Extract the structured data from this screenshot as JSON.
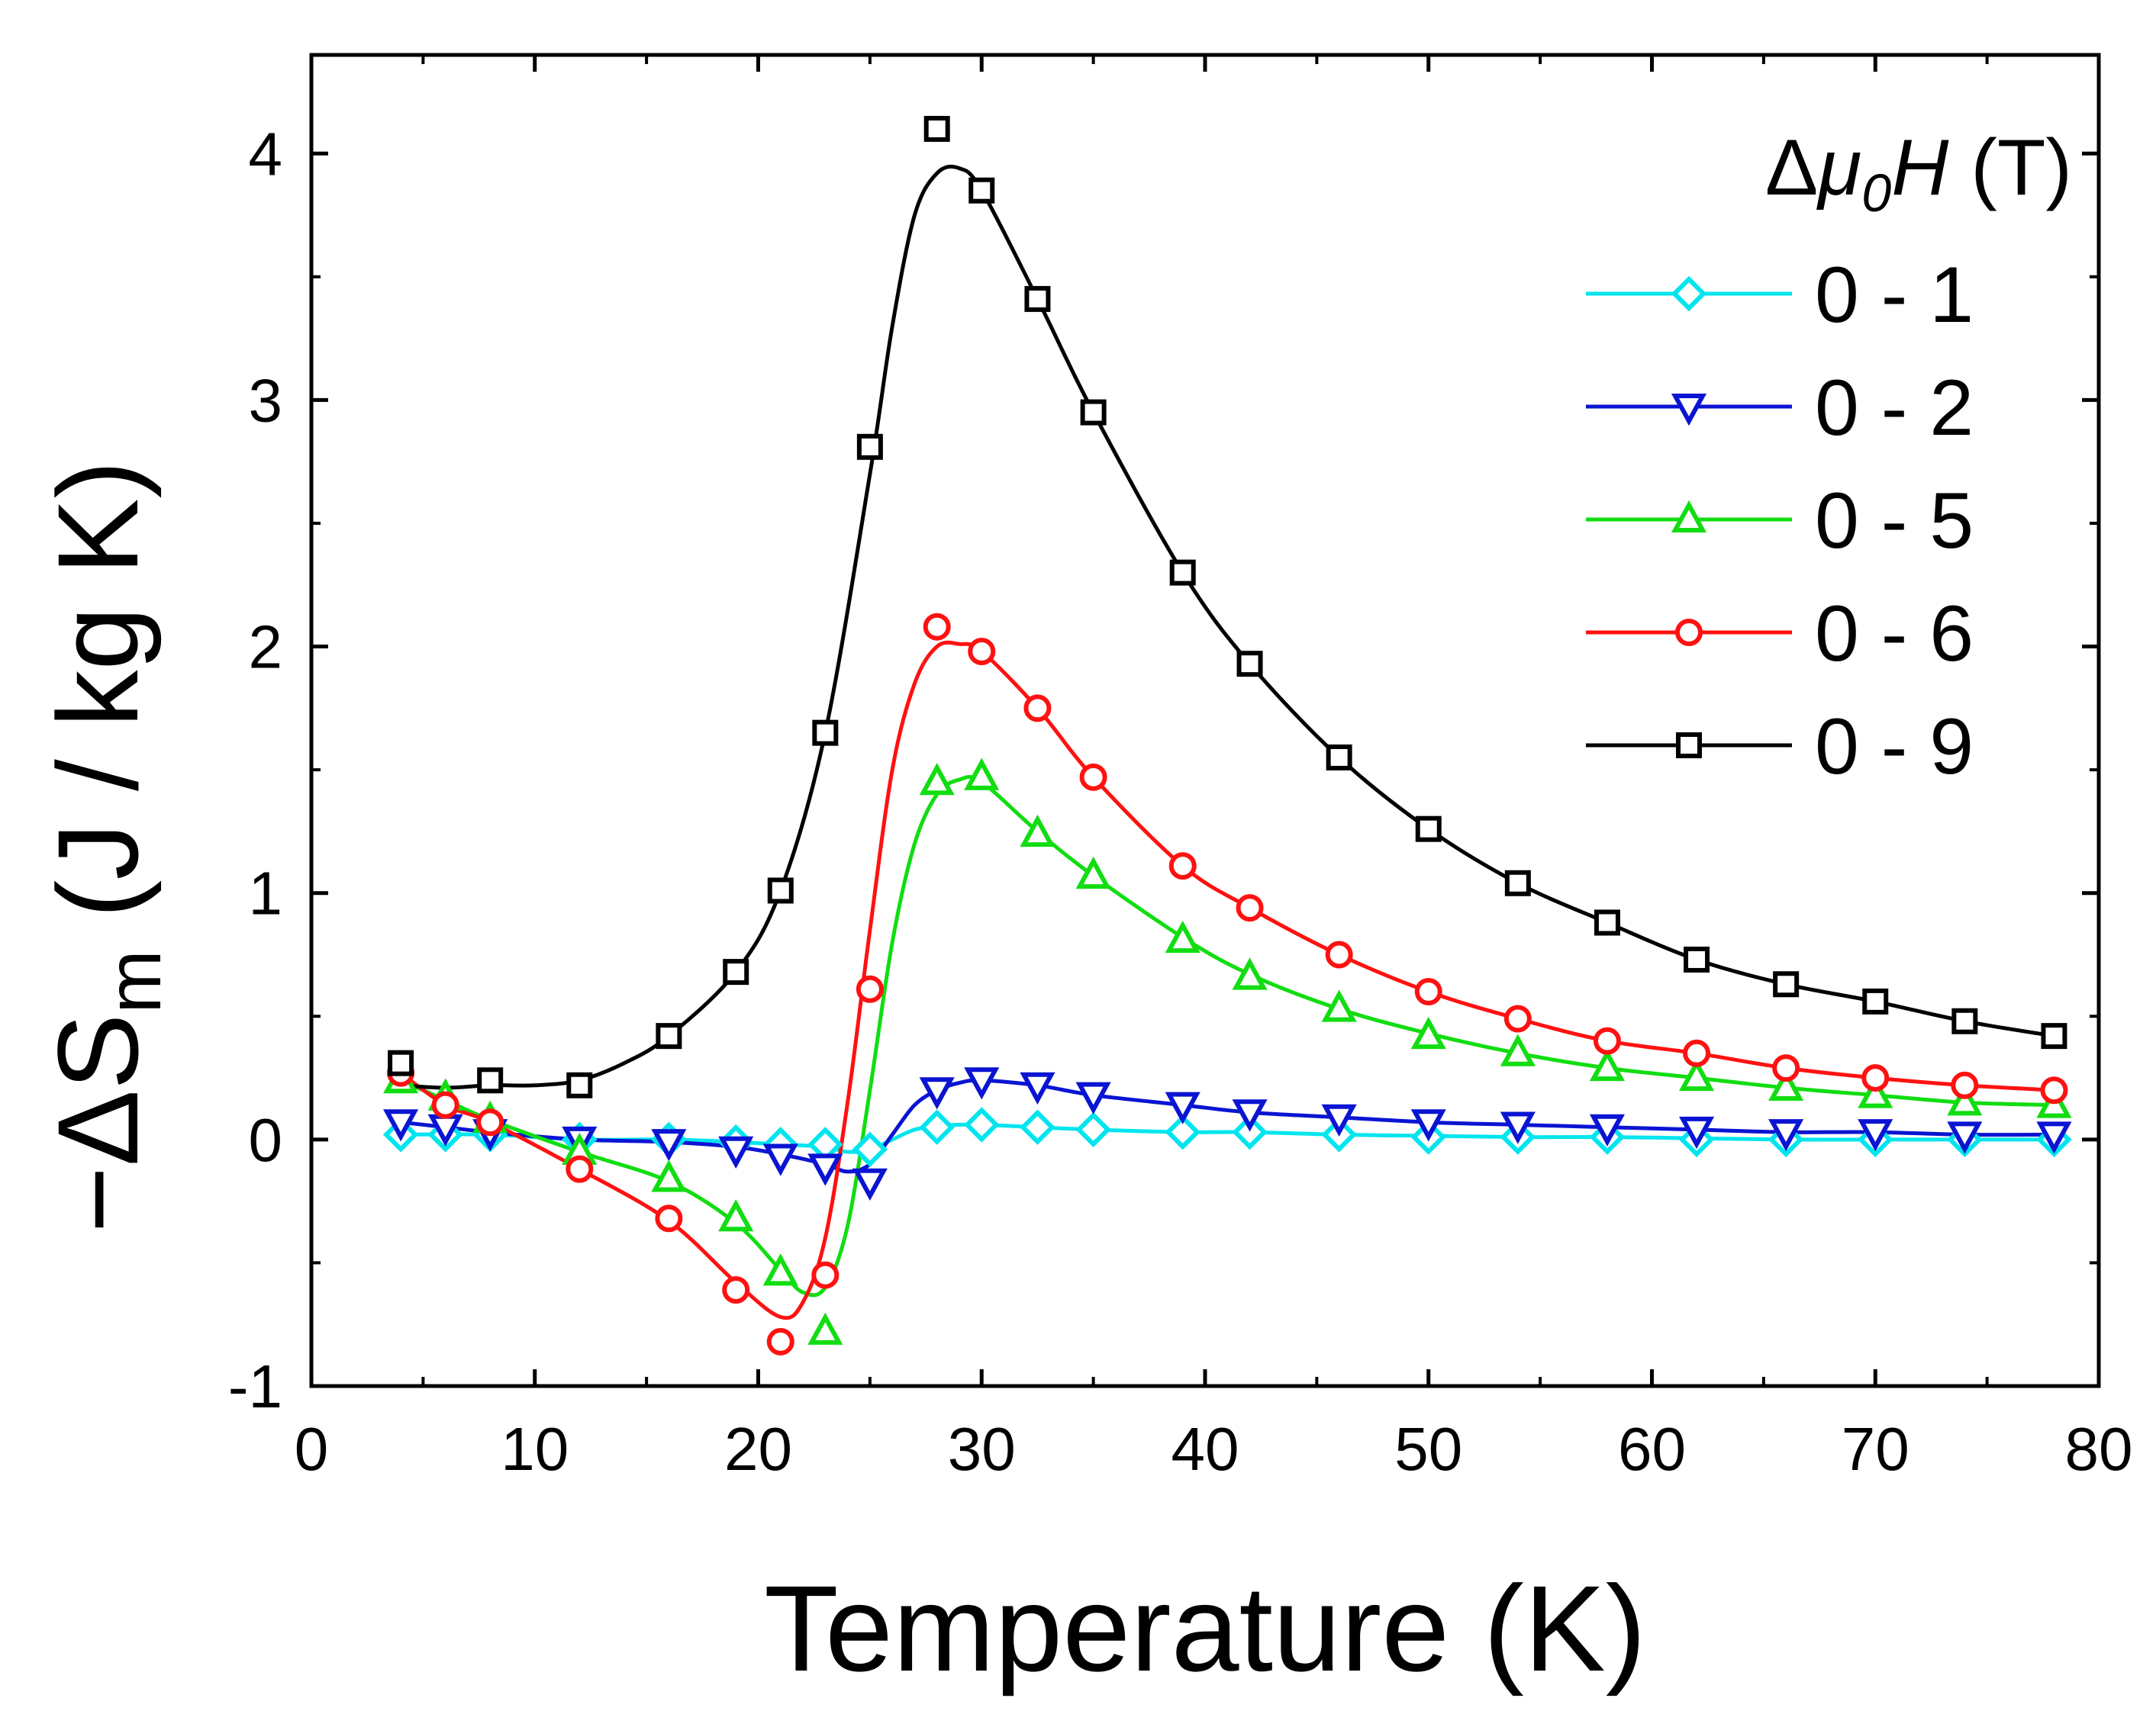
{
  "chart_data": {
    "type": "line",
    "title": "",
    "xlabel": "Temperature (K)",
    "ylabel": {
      "minus": "−",
      "delta": "Δ",
      "symbol": "S",
      "subscript": "m",
      "units": " (J / kg K)"
    },
    "xlim": [
      0,
      80
    ],
    "ylim": [
      -1,
      4.4
    ],
    "xticks": [
      "0",
      "10",
      "20",
      "30",
      "40",
      "50",
      "60",
      "70",
      "80"
    ],
    "yticks": [
      "-1",
      "0",
      "1",
      "2",
      "3",
      "4"
    ],
    "legend": {
      "title": {
        "delta": "Δ",
        "mu": "μ",
        "sub": "0",
        "h": "H",
        "units": " (T)"
      },
      "placement": "top-right"
    },
    "series": [
      {
        "name": "0 - 1",
        "color": "#00e5ee",
        "marker": "diamond",
        "x": [
          4,
          6,
          8,
          12,
          16,
          19,
          21,
          23,
          25,
          28,
          30,
          32.5,
          35,
          39,
          42,
          46,
          50,
          54,
          58,
          62,
          66,
          70,
          74,
          78
        ],
        "y": [
          0.02,
          0.02,
          0.02,
          0.0,
          0.0,
          -0.01,
          -0.02,
          -0.02,
          -0.04,
          0.05,
          0.06,
          0.05,
          0.04,
          0.03,
          0.03,
          0.02,
          0.01,
          0.01,
          0.01,
          0.0,
          0.0,
          0.0,
          0.0,
          0.0
        ],
        "curve_x": [
          4,
          8,
          12,
          16,
          19,
          21,
          23,
          24,
          25,
          26,
          27,
          28,
          29,
          30,
          32.5,
          35,
          39,
          42,
          46,
          50,
          54,
          58,
          62,
          66,
          70,
          74,
          78
        ],
        "curve_y": [
          0.02,
          0.02,
          0.0,
          0.0,
          -0.01,
          -0.02,
          -0.03,
          -0.05,
          -0.04,
          0.0,
          0.04,
          0.055,
          0.06,
          0.06,
          0.05,
          0.04,
          0.03,
          0.03,
          0.02,
          0.015,
          0.01,
          0.01,
          0.005,
          0.0,
          0.0,
          0.0,
          0.0
        ]
      },
      {
        "name": "0 - 2",
        "color": "#0a14d2",
        "marker": "triangle-down",
        "x": [
          4,
          6,
          8,
          12,
          16,
          19,
          21,
          23,
          25,
          28,
          30,
          32.5,
          35,
          39,
          42,
          46,
          50,
          54,
          58,
          62,
          66,
          70,
          74,
          78
        ],
        "y": [
          0.07,
          0.05,
          0.03,
          0.0,
          -0.01,
          -0.04,
          -0.07,
          -0.11,
          -0.17,
          0.2,
          0.24,
          0.22,
          0.18,
          0.14,
          0.11,
          0.09,
          0.07,
          0.06,
          0.05,
          0.04,
          0.03,
          0.03,
          0.02,
          0.02
        ],
        "curve_x": [
          4,
          6,
          8,
          12,
          16,
          19,
          21,
          23,
          24,
          25,
          26,
          27,
          28,
          29,
          30,
          32.5,
          35,
          39,
          42,
          46,
          50,
          54,
          58,
          62,
          66,
          70,
          74,
          78
        ],
        "curve_y": [
          0.07,
          0.05,
          0.03,
          0.0,
          -0.01,
          -0.03,
          -0.06,
          -0.1,
          -0.13,
          -0.1,
          0.02,
          0.14,
          0.2,
          0.23,
          0.24,
          0.22,
          0.18,
          0.14,
          0.11,
          0.09,
          0.07,
          0.06,
          0.05,
          0.04,
          0.03,
          0.03,
          0.02,
          0.02
        ]
      },
      {
        "name": "0 - 5",
        "color": "#11dd11",
        "marker": "triangle-up",
        "x": [
          4,
          6,
          8,
          12,
          16,
          19,
          21,
          23,
          28,
          30,
          32.5,
          35,
          39,
          42,
          46,
          50,
          54,
          58,
          62,
          66,
          70,
          74,
          78
        ],
        "y": [
          0.24,
          0.17,
          0.08,
          -0.05,
          -0.16,
          -0.32,
          -0.54,
          -0.78,
          1.45,
          1.47,
          1.24,
          1.07,
          0.81,
          0.66,
          0.53,
          0.42,
          0.35,
          0.29,
          0.25,
          0.21,
          0.18,
          0.15,
          0.14
        ],
        "curve_x": [
          4,
          6,
          8,
          12,
          16,
          19,
          21,
          22,
          23,
          24,
          25,
          26,
          27,
          28,
          29,
          30,
          32.5,
          35,
          39,
          42,
          46,
          50,
          54,
          58,
          62,
          66,
          70,
          74,
          78
        ],
        "curve_y": [
          0.24,
          0.16,
          0.08,
          -0.05,
          -0.17,
          -0.34,
          -0.53,
          -0.62,
          -0.6,
          -0.35,
          0.2,
          0.8,
          1.2,
          1.4,
          1.46,
          1.45,
          1.25,
          1.07,
          0.82,
          0.67,
          0.53,
          0.43,
          0.35,
          0.29,
          0.25,
          0.21,
          0.18,
          0.15,
          0.14
        ]
      },
      {
        "name": "0 - 6",
        "color": "#ff1111",
        "marker": "circle",
        "x": [
          4,
          6,
          8,
          12,
          16,
          19,
          21,
          23,
          25,
          28,
          30,
          32.5,
          35,
          39,
          42,
          46,
          50,
          54,
          58,
          62,
          66,
          70,
          74,
          78
        ],
        "y": [
          0.27,
          0.14,
          0.07,
          -0.12,
          -0.32,
          -0.61,
          -0.82,
          -0.55,
          0.61,
          2.08,
          1.98,
          1.75,
          1.47,
          1.11,
          0.94,
          0.75,
          0.6,
          0.49,
          0.4,
          0.35,
          0.29,
          0.25,
          0.22,
          0.2
        ],
        "curve_x": [
          4,
          6,
          8,
          12,
          16,
          19,
          21,
          22,
          23,
          24,
          25,
          26,
          27,
          28,
          29,
          30,
          32.5,
          35,
          39,
          42,
          46,
          50,
          54,
          58,
          62,
          66,
          70,
          74,
          78
        ],
        "curve_y": [
          0.27,
          0.14,
          0.07,
          -0.12,
          -0.33,
          -0.58,
          -0.72,
          -0.66,
          -0.4,
          0.15,
          0.85,
          1.5,
          1.85,
          2.0,
          2.01,
          1.98,
          1.75,
          1.47,
          1.11,
          0.94,
          0.75,
          0.6,
          0.49,
          0.4,
          0.35,
          0.29,
          0.25,
          0.22,
          0.2
        ]
      },
      {
        "name": "0 - 9",
        "color": "#000000",
        "marker": "square",
        "x": [
          4,
          8,
          12,
          16,
          19,
          21,
          23,
          25,
          28,
          30,
          32.5,
          35,
          39,
          42,
          46,
          50,
          54,
          58,
          62,
          66,
          70,
          74,
          78
        ],
        "y": [
          0.31,
          0.24,
          0.22,
          0.42,
          0.68,
          1.01,
          1.65,
          2.81,
          4.1,
          3.85,
          3.41,
          2.95,
          2.3,
          1.93,
          1.55,
          1.26,
          1.04,
          0.88,
          0.73,
          0.63,
          0.56,
          0.48,
          0.42
        ],
        "curve_x": [
          4,
          6,
          8,
          10,
          12,
          14,
          16,
          19,
          21,
          23,
          25,
          26,
          27,
          28,
          29,
          30,
          32.5,
          35,
          39,
          42,
          46,
          50,
          54,
          58,
          62,
          66,
          70,
          74,
          78
        ],
        "curve_y": [
          0.22,
          0.21,
          0.22,
          0.22,
          0.24,
          0.31,
          0.42,
          0.68,
          1.01,
          1.65,
          2.7,
          3.3,
          3.75,
          3.92,
          3.94,
          3.85,
          3.41,
          2.95,
          2.3,
          1.93,
          1.55,
          1.26,
          1.04,
          0.88,
          0.73,
          0.63,
          0.56,
          0.48,
          0.42
        ]
      }
    ]
  }
}
